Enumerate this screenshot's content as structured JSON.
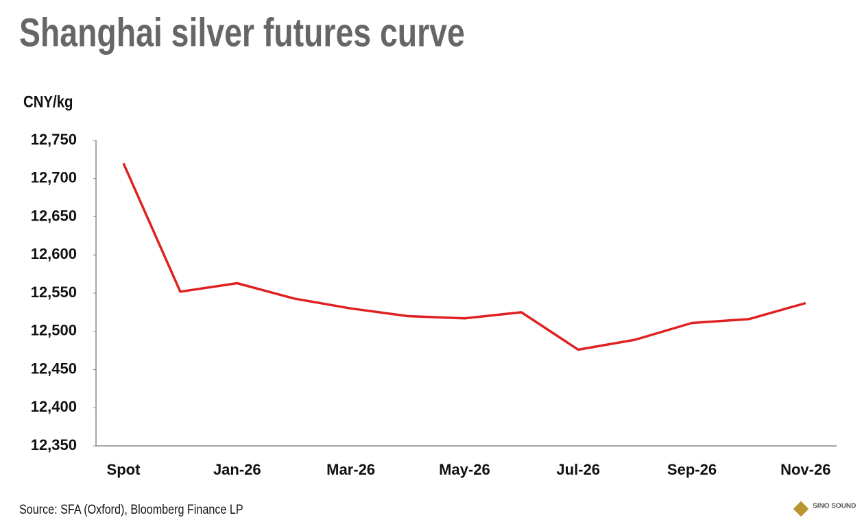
{
  "chart_data": {
    "type": "line",
    "title": "Shanghai silver futures curve",
    "y_label": "CNY/kg",
    "source": "Source: SFA (Oxford), Bloomberg Finance LP",
    "watermark": "SINO SOUND",
    "categories": [
      "Spot",
      null,
      "Jan-26",
      null,
      "Mar-26",
      null,
      "May-26",
      null,
      "Jul-26",
      null,
      "Sep-26",
      null,
      "Nov-26"
    ],
    "values": [
      12720,
      12552,
      12563,
      12543,
      12530,
      12520,
      12517,
      12525,
      12476,
      12489,
      12511,
      12516,
      12537
    ],
    "color": "#e02020",
    "ylim": [
      12350,
      12750
    ],
    "yticks": [
      {
        "value": 12350,
        "label": "12,350"
      },
      {
        "value": 12400,
        "label": "12,400"
      },
      {
        "value": 12450,
        "label": "12,450"
      },
      {
        "value": 12500,
        "label": "12,500"
      },
      {
        "value": 12550,
        "label": "12,550"
      },
      {
        "value": 12600,
        "label": "12,600"
      },
      {
        "value": 12650,
        "label": "12,650"
      },
      {
        "value": 12700,
        "label": "12,700"
      },
      {
        "value": 12750,
        "label": "12,750"
      }
    ],
    "grid": false
  }
}
